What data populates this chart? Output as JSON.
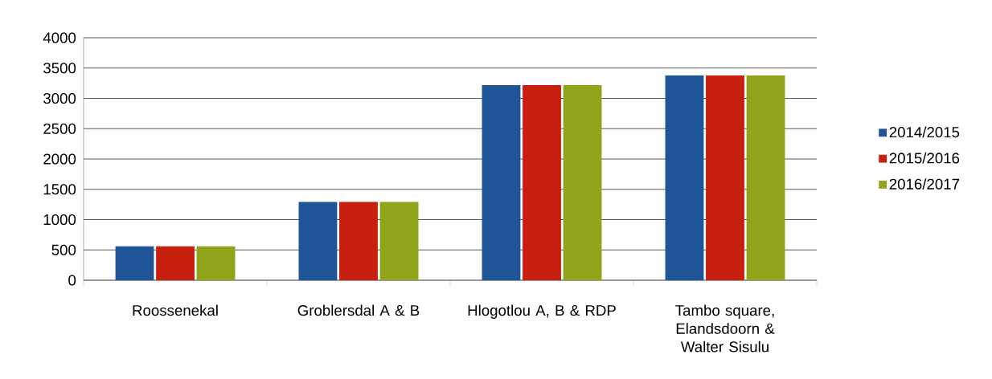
{
  "chart_data": {
    "type": "bar",
    "categories": [
      "Roossenekal",
      "Groblersdal A & B",
      "Hlogotlou A, B & RDP",
      "Tambo square, Elandsdoorn & Walter Sisulu"
    ],
    "series": [
      {
        "name": "2014/2015",
        "color": "#1f5597",
        "values": [
          560,
          1290,
          3220,
          3380
        ]
      },
      {
        "name": "2015/2016",
        "color": "#c8200e",
        "values": [
          560,
          1290,
          3220,
          3380
        ]
      },
      {
        "name": "2016/2017",
        "color": "#92a51a",
        "values": [
          560,
          1290,
          3220,
          3380
        ]
      }
    ],
    "ylim": [
      0,
      4000
    ],
    "yticks": [
      0,
      500,
      1000,
      1500,
      2000,
      2500,
      3000,
      3500,
      4000
    ],
    "grid": "y",
    "legend": "right"
  }
}
